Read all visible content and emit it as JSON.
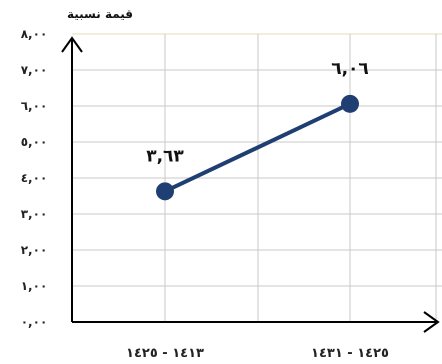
{
  "chart_data": {
    "type": "line",
    "ylabel": "قيمة نسبية",
    "ylim": [
      0,
      8
    ],
    "y_ticks": [
      {
        "value": 0,
        "label": "٠,٠٠"
      },
      {
        "value": 1,
        "label": "١,٠٠"
      },
      {
        "value": 2,
        "label": "٢,٠٠"
      },
      {
        "value": 3,
        "label": "٣,٠٠"
      },
      {
        "value": 4,
        "label": "٤,٠٠"
      },
      {
        "value": 5,
        "label": "٥,٠٠"
      },
      {
        "value": 6,
        "label": "٦,٠٠"
      },
      {
        "value": 7,
        "label": "٧,٠٠"
      },
      {
        "value": 8,
        "label": "٨,٠٠"
      }
    ],
    "categories": [
      "١٤١٣ - ١٤٢٥",
      "١٤٢٥ - ١٤٣١"
    ],
    "series": [
      {
        "values": [
          3.63,
          6.06
        ],
        "labels": [
          "٣,٦٣",
          "٦,٠٦"
        ],
        "color": "#1f3f73"
      }
    ],
    "grid": true
  }
}
